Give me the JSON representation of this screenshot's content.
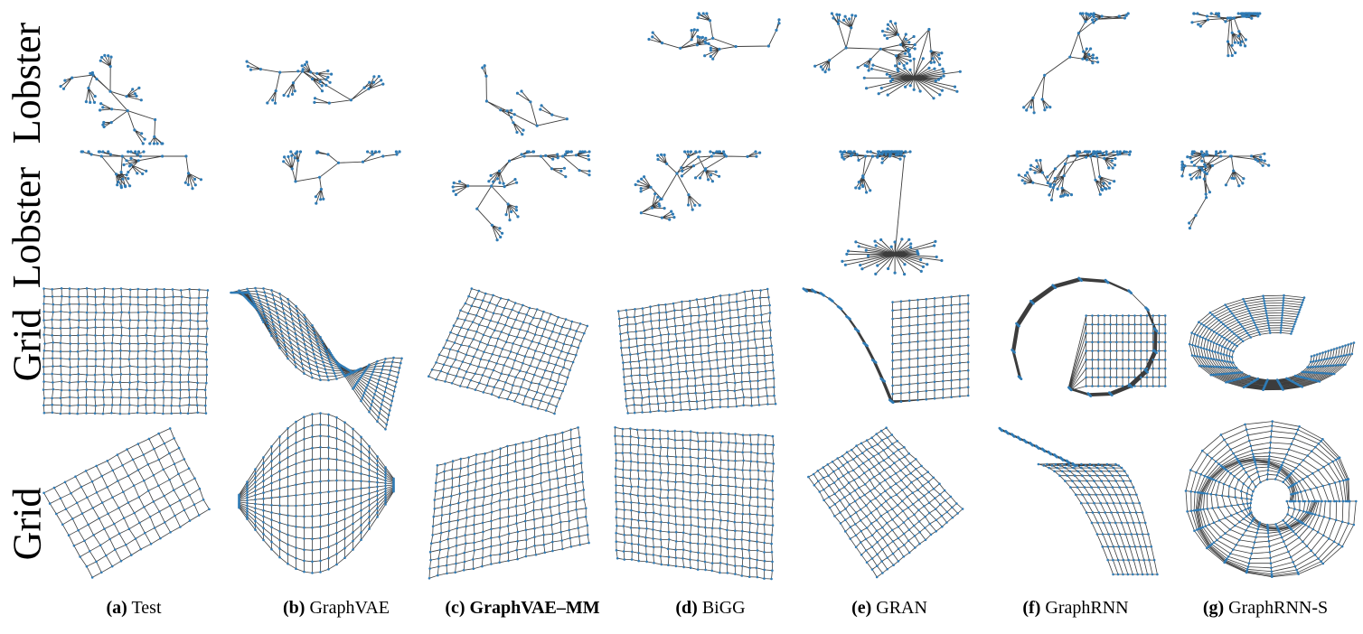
{
  "figure": {
    "row_labels": [
      "Lobster",
      "Lobster",
      "Grid",
      "Grid"
    ],
    "row_types": [
      "lobster",
      "lobster",
      "grid",
      "grid"
    ],
    "columns": [
      {
        "tag": "(a)",
        "name": "Test",
        "bold": false
      },
      {
        "tag": "(b)",
        "name": "GraphVAE",
        "bold": false
      },
      {
        "tag": "(c)",
        "name": "GraphVAE–MM",
        "bold": true
      },
      {
        "tag": "(d)",
        "name": "BiGG",
        "bold": false
      },
      {
        "tag": "(e)",
        "name": "GRAN",
        "bold": false
      },
      {
        "tag": "(f)",
        "name": "GraphRNN",
        "bold": false
      },
      {
        "tag": "(g)",
        "name": "GraphRNN-S",
        "bold": false
      }
    ],
    "colors": {
      "node": "#2f7bb5",
      "edge": "#3c3c3c"
    }
  }
}
